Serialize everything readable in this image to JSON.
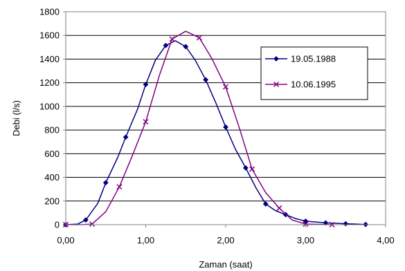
{
  "chart_data": {
    "type": "scatter",
    "title": "",
    "xlabel": "Zaman (saat)",
    "ylabel": "Debi (l/s)",
    "xlim": [
      0,
      4
    ],
    "ylim": [
      0,
      1800
    ],
    "xticks": [
      "0,00",
      "1,00",
      "2,00",
      "3,00",
      "4,00"
    ],
    "yticks": [
      "0",
      "200",
      "400",
      "600",
      "800",
      "1000",
      "1200",
      "1400",
      "1600",
      "1800"
    ],
    "grid": "horizontal",
    "legend_position": "right",
    "series": [
      {
        "name": "19.05.1988",
        "color": "#000080",
        "marker": "diamond",
        "x": [
          0.0,
          0.25,
          0.5,
          0.75,
          1.0,
          1.25,
          1.5,
          1.75,
          2.0,
          2.25,
          2.5,
          2.75,
          3.0,
          3.25,
          3.5,
          3.75
        ],
        "y": [
          0,
          40,
          355,
          740,
          1185,
          1515,
          1505,
          1225,
          825,
          480,
          175,
          85,
          30,
          15,
          8,
          2
        ],
        "curve_x": [
          0.0,
          0.15,
          0.25,
          0.4,
          0.5,
          0.65,
          0.75,
          0.9,
          1.0,
          1.12,
          1.25,
          1.37,
          1.5,
          1.62,
          1.75,
          1.88,
          2.0,
          2.12,
          2.25,
          2.38,
          2.5,
          2.62,
          2.75,
          2.88,
          3.0,
          3.25,
          3.5,
          3.75
        ],
        "curve_y": [
          0,
          5,
          40,
          180,
          355,
          570,
          740,
          980,
          1185,
          1390,
          1515,
          1555,
          1505,
          1390,
          1225,
          1025,
          825,
          640,
          480,
          310,
          175,
          120,
          85,
          50,
          30,
          15,
          8,
          2
        ]
      },
      {
        "name": "10.06.1995",
        "color": "#800080",
        "marker": "x",
        "x": [
          0.0,
          0.33,
          0.67,
          1.0,
          1.33,
          1.67,
          2.0,
          2.33,
          2.67,
          3.0,
          3.33
        ],
        "y": [
          0,
          5,
          320,
          870,
          1570,
          1580,
          1165,
          470,
          140,
          5,
          0
        ],
        "curve_x": [
          0.0,
          0.2,
          0.33,
          0.5,
          0.67,
          0.83,
          1.0,
          1.17,
          1.33,
          1.5,
          1.67,
          1.83,
          2.0,
          2.17,
          2.33,
          2.5,
          2.67,
          2.83,
          3.0,
          3.33
        ],
        "curve_y": [
          0,
          0,
          5,
          110,
          320,
          580,
          870,
          1260,
          1570,
          1635,
          1580,
          1400,
          1165,
          820,
          470,
          270,
          140,
          40,
          5,
          0
        ]
      }
    ]
  }
}
